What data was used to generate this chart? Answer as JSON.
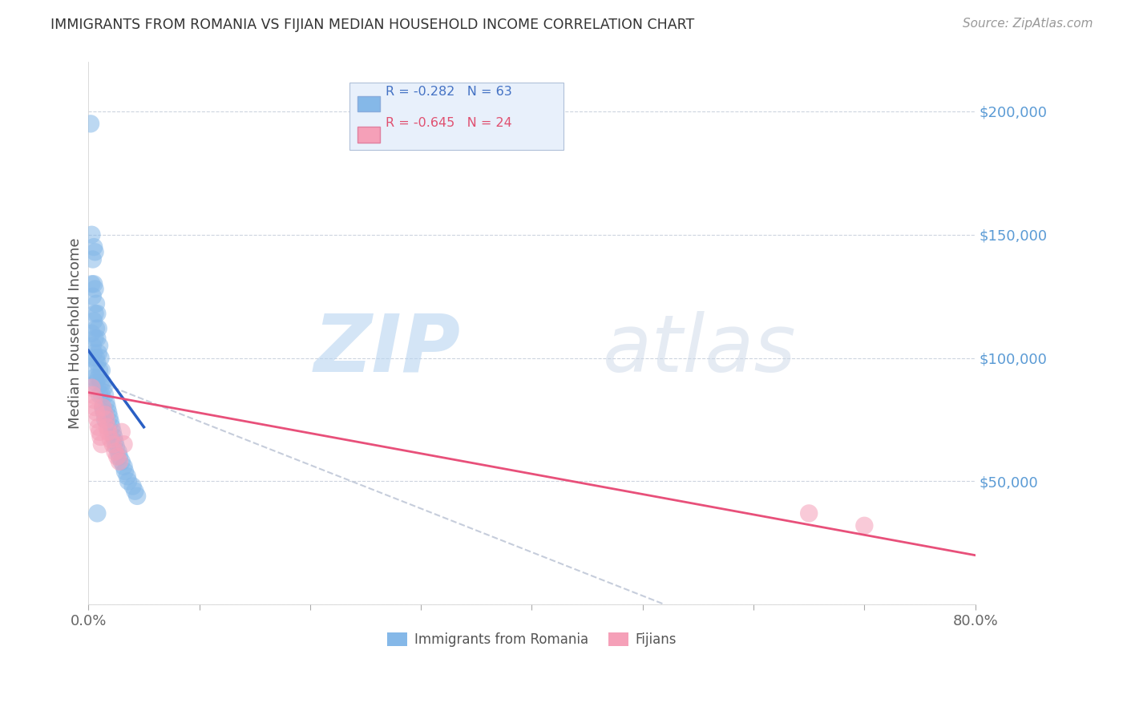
{
  "title": "IMMIGRANTS FROM ROMANIA VS FIJIAN MEDIAN HOUSEHOLD INCOME CORRELATION CHART",
  "source": "Source: ZipAtlas.com",
  "ylabel": "Median Household Income",
  "yticks": [
    0,
    50000,
    100000,
    150000,
    200000
  ],
  "xmin": 0.0,
  "xmax": 0.8,
  "ymin": 0,
  "ymax": 220000,
  "romania_R": -0.282,
  "romania_N": 63,
  "fijian_R": -0.645,
  "fijian_N": 24,
  "romania_color": "#85b8e8",
  "fijian_color": "#f5a0b8",
  "romania_line_color": "#2a5fc4",
  "fijian_line_color": "#e8507a",
  "dash_color": "#c0c8d8",
  "romania_x": [
    0.002,
    0.002,
    0.003,
    0.003,
    0.003,
    0.004,
    0.004,
    0.004,
    0.005,
    0.005,
    0.005,
    0.005,
    0.005,
    0.006,
    0.006,
    0.006,
    0.007,
    0.007,
    0.007,
    0.007,
    0.008,
    0.008,
    0.008,
    0.008,
    0.009,
    0.009,
    0.009,
    0.01,
    0.01,
    0.01,
    0.011,
    0.011,
    0.012,
    0.012,
    0.013,
    0.013,
    0.014,
    0.014,
    0.015,
    0.015,
    0.016,
    0.017,
    0.018,
    0.019,
    0.02,
    0.021,
    0.022,
    0.023,
    0.024,
    0.025,
    0.027,
    0.028,
    0.03,
    0.032,
    0.033,
    0.035,
    0.036,
    0.04,
    0.042,
    0.044,
    0.003,
    0.006,
    0.008
  ],
  "romania_y": [
    195000,
    100000,
    130000,
    110000,
    95000,
    140000,
    125000,
    105000,
    145000,
    130000,
    115000,
    102000,
    92000,
    128000,
    118000,
    108000,
    122000,
    112000,
    100000,
    90000,
    118000,
    108000,
    98000,
    88000,
    112000,
    102000,
    92000,
    105000,
    95000,
    85000,
    100000,
    90000,
    95000,
    85000,
    90000,
    80000,
    88000,
    78000,
    85000,
    75000,
    82000,
    80000,
    78000,
    76000,
    74000,
    72000,
    70000,
    68000,
    66000,
    64000,
    62000,
    60000,
    58000,
    56000,
    54000,
    52000,
    50000,
    48000,
    46000,
    44000,
    150000,
    143000,
    37000
  ],
  "fijian_x": [
    0.003,
    0.004,
    0.005,
    0.006,
    0.007,
    0.008,
    0.009,
    0.01,
    0.011,
    0.012,
    0.013,
    0.015,
    0.016,
    0.017,
    0.018,
    0.02,
    0.022,
    0.024,
    0.026,
    0.028,
    0.03,
    0.032,
    0.65,
    0.7
  ],
  "fijian_y": [
    88000,
    85000,
    83000,
    80000,
    78000,
    75000,
    72000,
    70000,
    68000,
    65000,
    80000,
    77000,
    75000,
    72000,
    70000,
    67000,
    65000,
    62000,
    60000,
    58000,
    70000,
    65000,
    37000,
    32000
  ],
  "romania_line_x": [
    0.0,
    0.05
  ],
  "romania_line_y": [
    103000,
    72000
  ],
  "fijian_line_x": [
    0.0,
    0.8
  ],
  "fijian_line_y": [
    86000,
    20000
  ],
  "dash_line_x": [
    0.0,
    0.52
  ],
  "dash_line_y": [
    92000,
    0
  ]
}
